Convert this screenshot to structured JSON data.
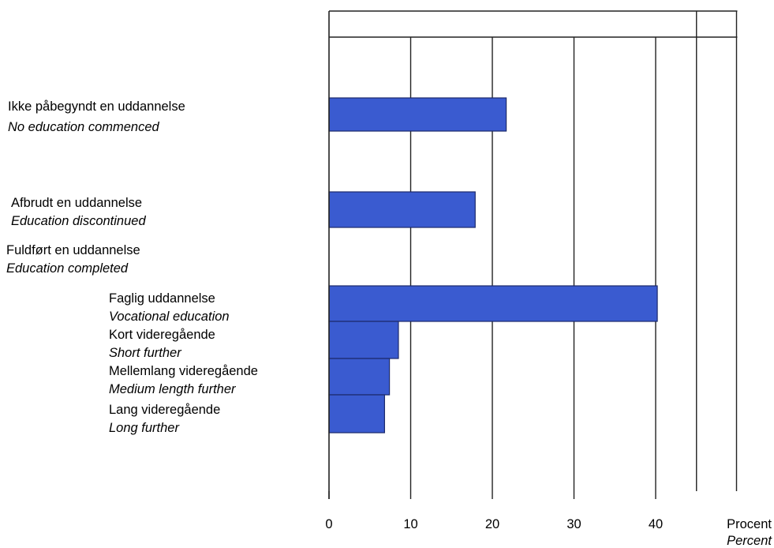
{
  "chart_data": {
    "type": "bar",
    "orientation": "horizontal",
    "title": "",
    "xlabel": "Procent",
    "xlabel_en": "Percent",
    "xlim": [
      0,
      50
    ],
    "xticks": [
      0,
      10,
      20,
      30,
      40
    ],
    "grid": true,
    "bar_color": "#3a5bd0",
    "categories": [
      {
        "label": "Ikke påbegyndt en uddannelse",
        "label_en": "No education commenced",
        "value": 21.7
      },
      {
        "label": "Afbrudt en uddannelse",
        "label_en": "Education discontinued",
        "value": 17.9
      },
      {
        "label": "Faglig uddannelse",
        "label_en": "Vocational education",
        "value": 40.2
      },
      {
        "label": "Kort videregående",
        "label_en": "Short further",
        "value": 8.5
      },
      {
        "label": "Mellemlang videregående",
        "label_en": "Medium length further",
        "value": 7.4
      },
      {
        "label": "Lang videregående",
        "label_en": "Long further",
        "value": 6.8
      }
    ],
    "group_heading": {
      "label": "Fuldført en uddannelse",
      "label_en": "Education completed"
    }
  }
}
